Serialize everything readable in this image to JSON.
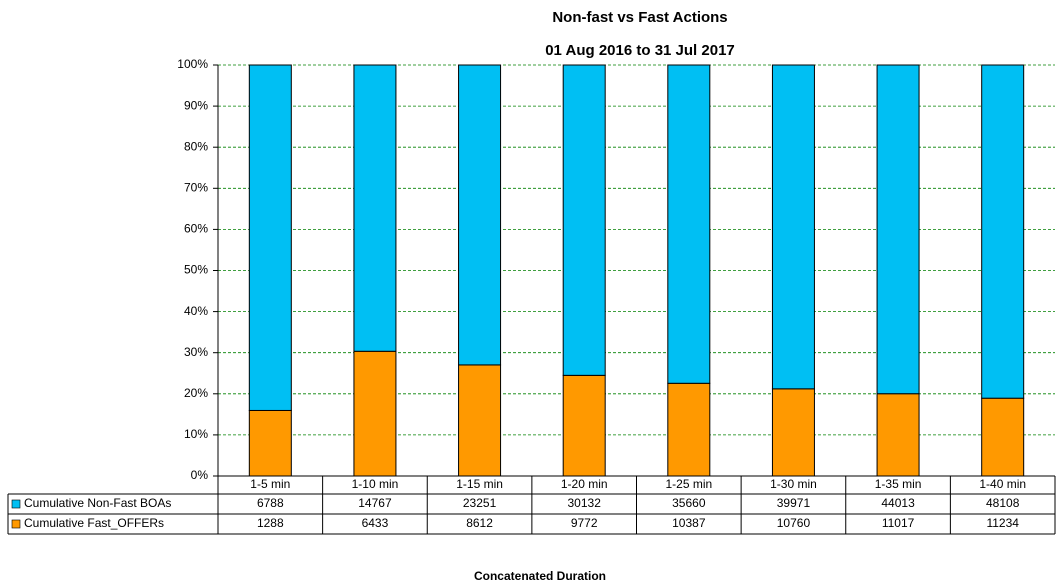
{
  "chart_data": {
    "type": "stacked_percent_bar",
    "title": "Non-fast vs Fast Actions",
    "subtitle": "01 Aug 2016 to 31 Jul 2017",
    "x_label": "Concatenated Duration",
    "categories": [
      "1-5 min",
      "1-10 min",
      "1-15 min",
      "1-20 min",
      "1-25 min",
      "1-30 min",
      "1-35 min",
      "1-40 min"
    ],
    "series": [
      {
        "name": "Cumulative Non-Fast BOAs",
        "color": "#00bff3",
        "values": [
          6788,
          14767,
          23251,
          30132,
          35660,
          39971,
          44013,
          48108
        ]
      },
      {
        "name": "Cumulative Fast_OFFERs",
        "color": "#ff9900",
        "values": [
          1288,
          6433,
          8612,
          9772,
          10387,
          10760,
          11017,
          11234
        ]
      }
    ],
    "ylim": [
      0,
      100
    ],
    "yticks": [
      {
        "value": 0,
        "label": "0%"
      },
      {
        "value": 10,
        "label": "10%"
      },
      {
        "value": 20,
        "label": "20%"
      },
      {
        "value": 30,
        "label": "30%"
      },
      {
        "value": 40,
        "label": "40%"
      },
      {
        "value": 50,
        "label": "50%"
      },
      {
        "value": 60,
        "label": "60%"
      },
      {
        "value": 70,
        "label": "70%"
      },
      {
        "value": 80,
        "label": "80%"
      },
      {
        "value": 90,
        "label": "90%"
      },
      {
        "value": 100,
        "label": "100%"
      }
    ],
    "grid": true,
    "grid_color": "#008000",
    "data_table": true
  }
}
